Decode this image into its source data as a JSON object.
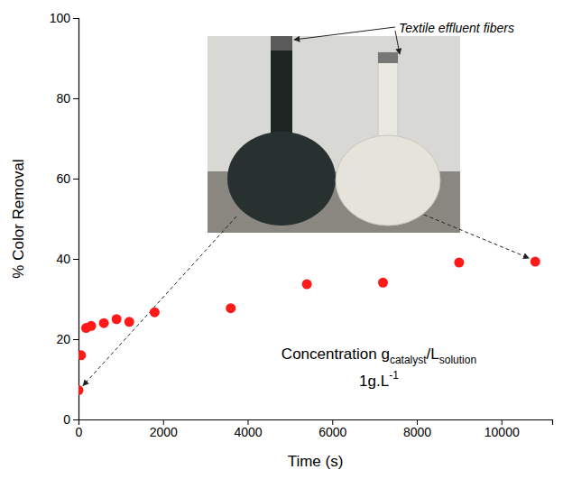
{
  "chart_data": {
    "type": "scatter",
    "x_label": "Time (s)",
    "y_label": "% Color Removal",
    "x": [
      0,
      60,
      180,
      300,
      600,
      900,
      1200,
      1800,
      3600,
      5400,
      7200,
      9000,
      10800
    ],
    "values": [
      7.3,
      16,
      22.8,
      23.3,
      24,
      25,
      24.3,
      26.7,
      27.7,
      33.7,
      34.1,
      39.1,
      39.3
    ],
    "color": "#ff1a1a",
    "marker": "circle",
    "xlim": [
      0,
      11200
    ],
    "xticks": [
      0,
      2000,
      4000,
      6000,
      8000,
      10000
    ],
    "ylim": [
      0,
      100
    ],
    "yticks": [
      0,
      20,
      40,
      60,
      80,
      100
    ],
    "grid": false,
    "annotations": [
      "Textile effluent fibers",
      [
        "Concentration g",
        "catalyst",
        "/L",
        "solution"
      ],
      [
        "1g.L",
        "-1"
      ]
    ]
  }
}
